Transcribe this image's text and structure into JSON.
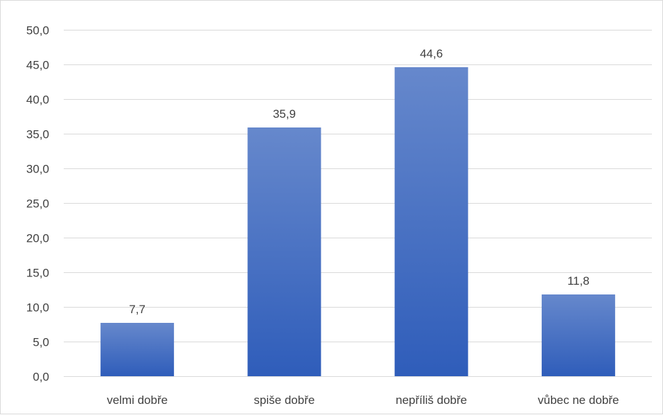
{
  "chart_data": {
    "type": "bar",
    "categories": [
      "velmi dobře",
      "spiše dobře",
      "nepříliš dobře",
      "vůbec ne dobře"
    ],
    "values": [
      7.7,
      35.9,
      44.6,
      11.8
    ],
    "data_labels": [
      "7,7",
      "35,9",
      "44,6",
      "11,8"
    ],
    "ylim": [
      0,
      50
    ],
    "yticks": [
      0,
      5,
      10,
      15,
      20,
      25,
      30,
      35,
      40,
      45,
      50
    ],
    "ytick_labels": [
      "0,0",
      "5,0",
      "10,0",
      "15,0",
      "20,0",
      "25,0",
      "30,0",
      "35,0",
      "40,0",
      "45,0",
      "50,0"
    ],
    "grid": true,
    "legend": "none",
    "bar_color_top": "#6688cc",
    "bar_color_bottom": "#2f5dba"
  }
}
